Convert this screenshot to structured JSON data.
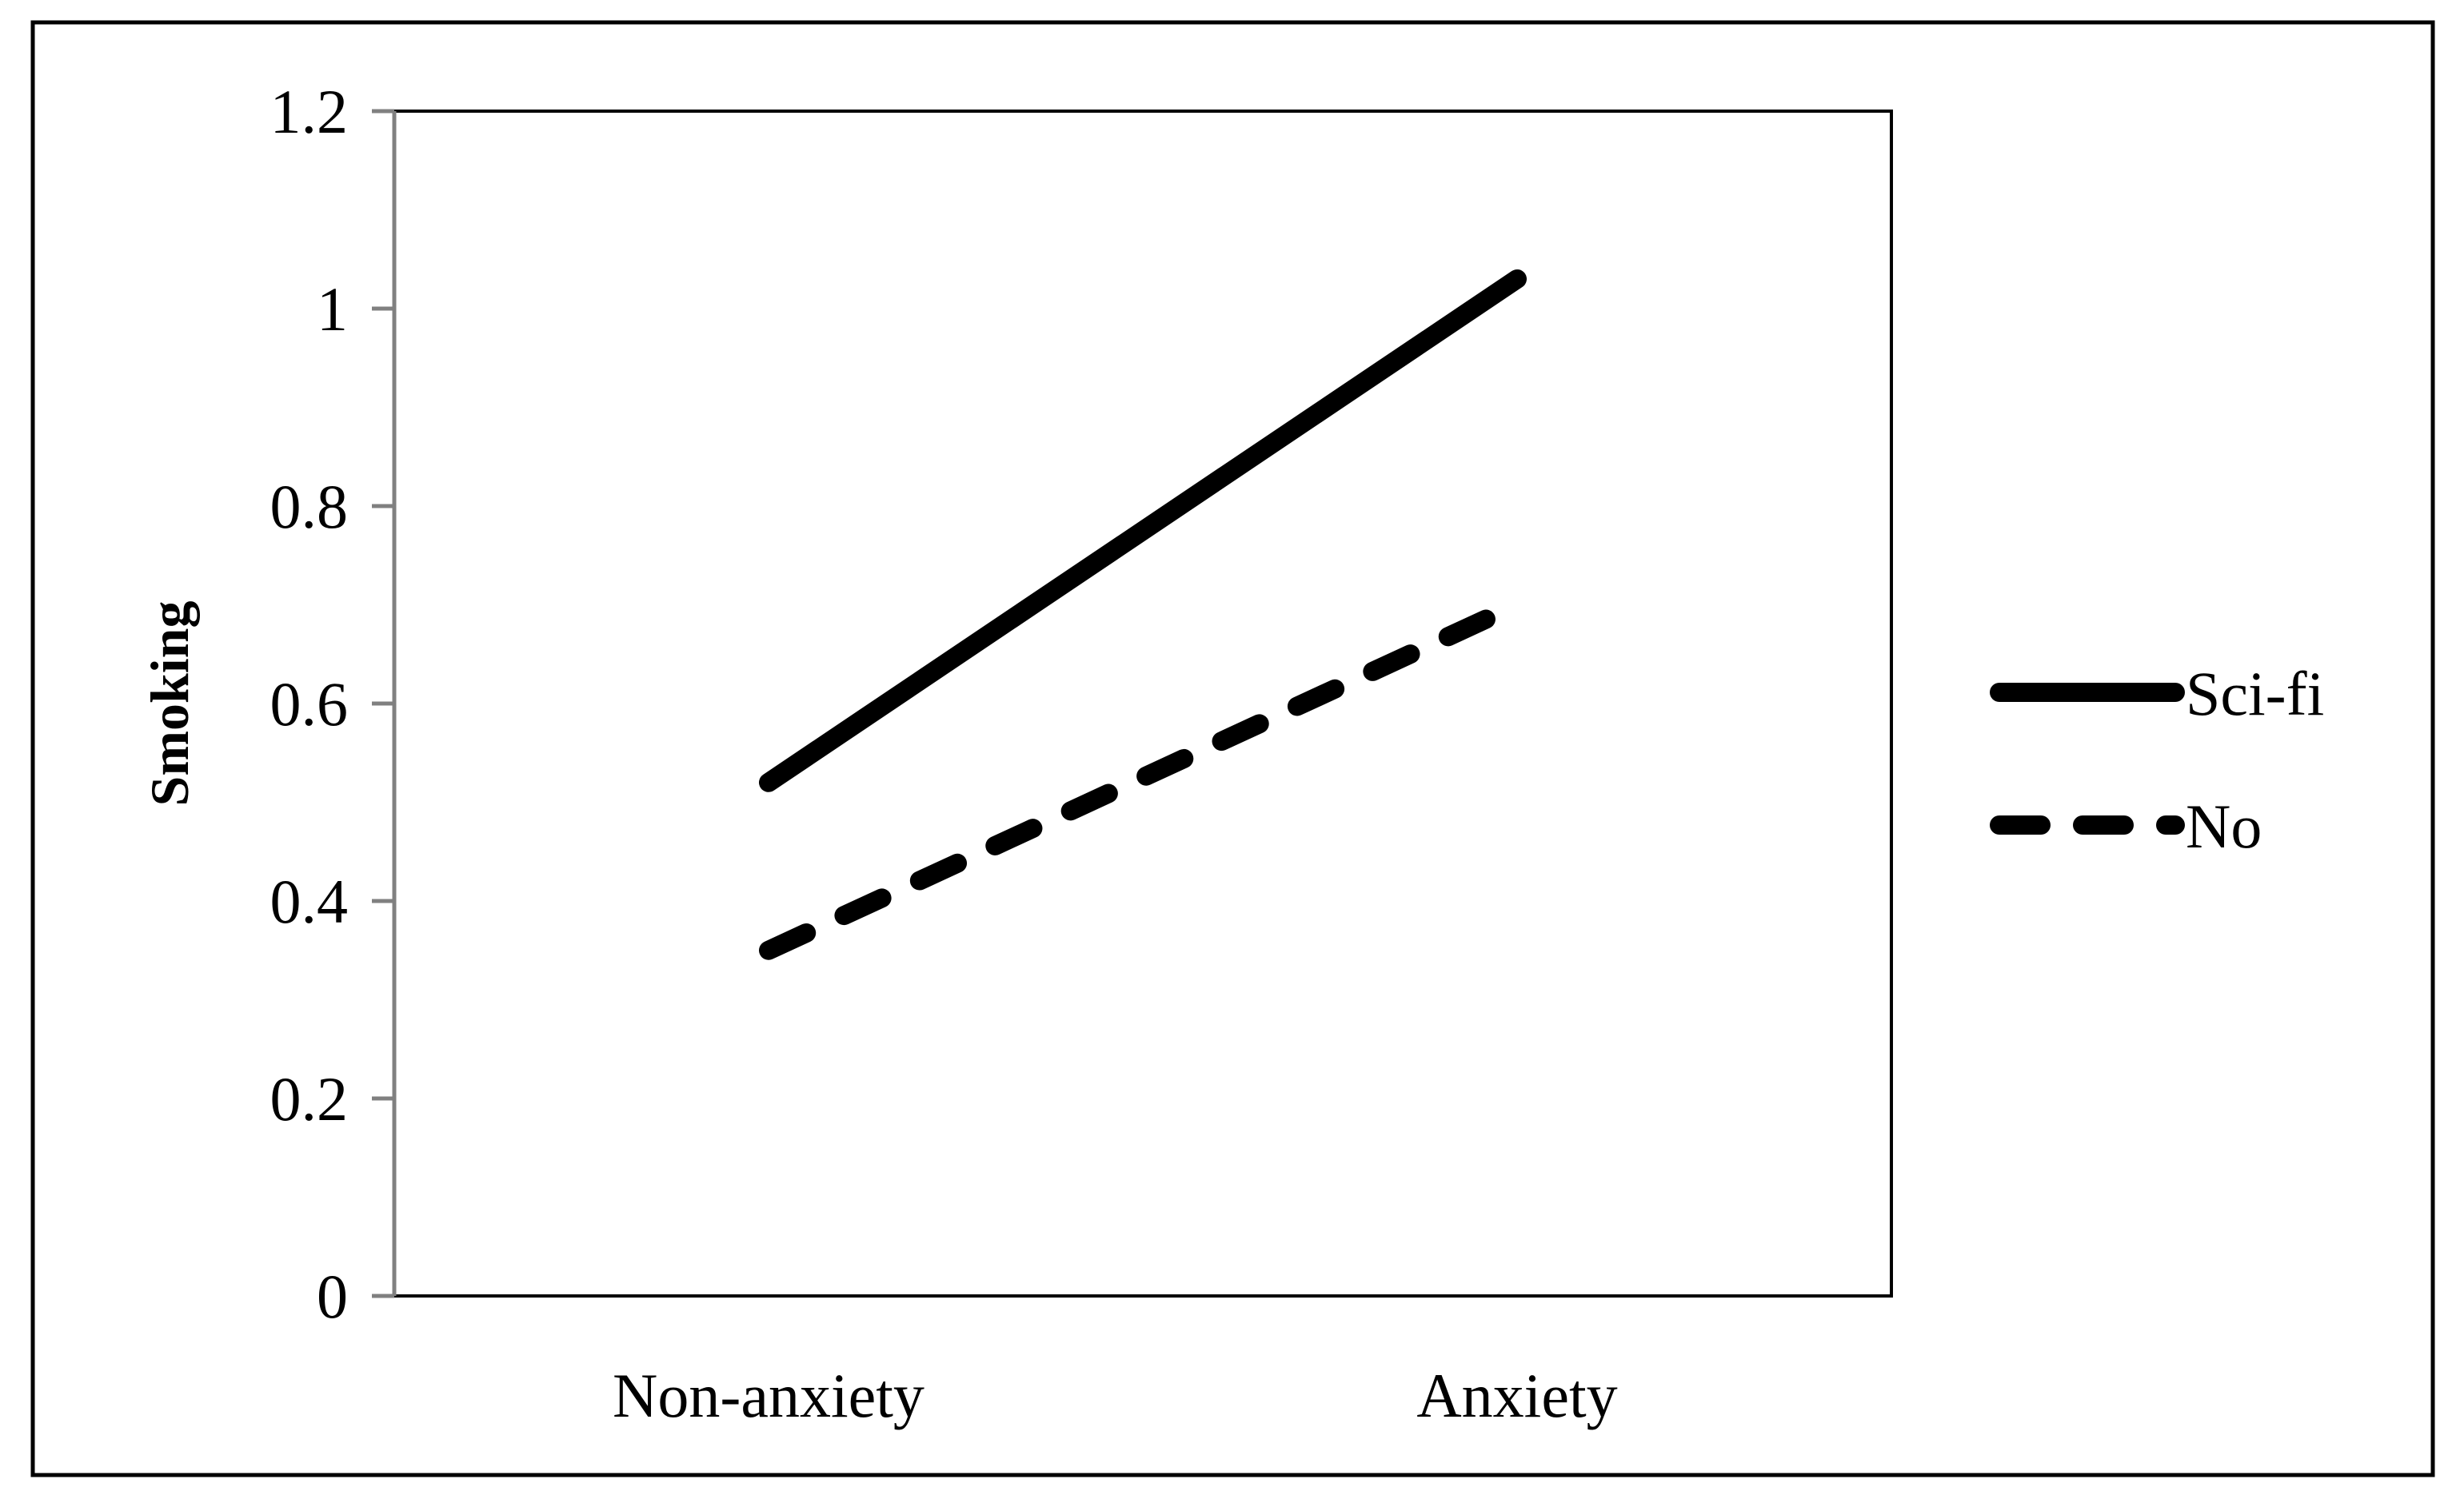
{
  "chart_data": {
    "type": "line",
    "title": "",
    "xlabel": "",
    "ylabel": "Smoking",
    "categories": [
      "Non-anxiety",
      "Anxiety"
    ],
    "ylim": [
      0,
      1.2
    ],
    "yticks": [
      "0",
      "0.2",
      "0.4",
      "0.6",
      "0.8",
      "1",
      "1.2"
    ],
    "yticks_values": [
      0,
      0.2,
      0.4,
      0.6,
      0.8,
      1.0,
      1.2
    ],
    "grid": false,
    "legend_position": "right",
    "series": [
      {
        "name": "Sci-fi",
        "values": [
          0.52,
          1.03
        ],
        "style": "solid",
        "color": "#000000"
      },
      {
        "name": "No",
        "values": [
          0.35,
          0.7
        ],
        "style": "dashed",
        "color": "#000000"
      }
    ]
  }
}
